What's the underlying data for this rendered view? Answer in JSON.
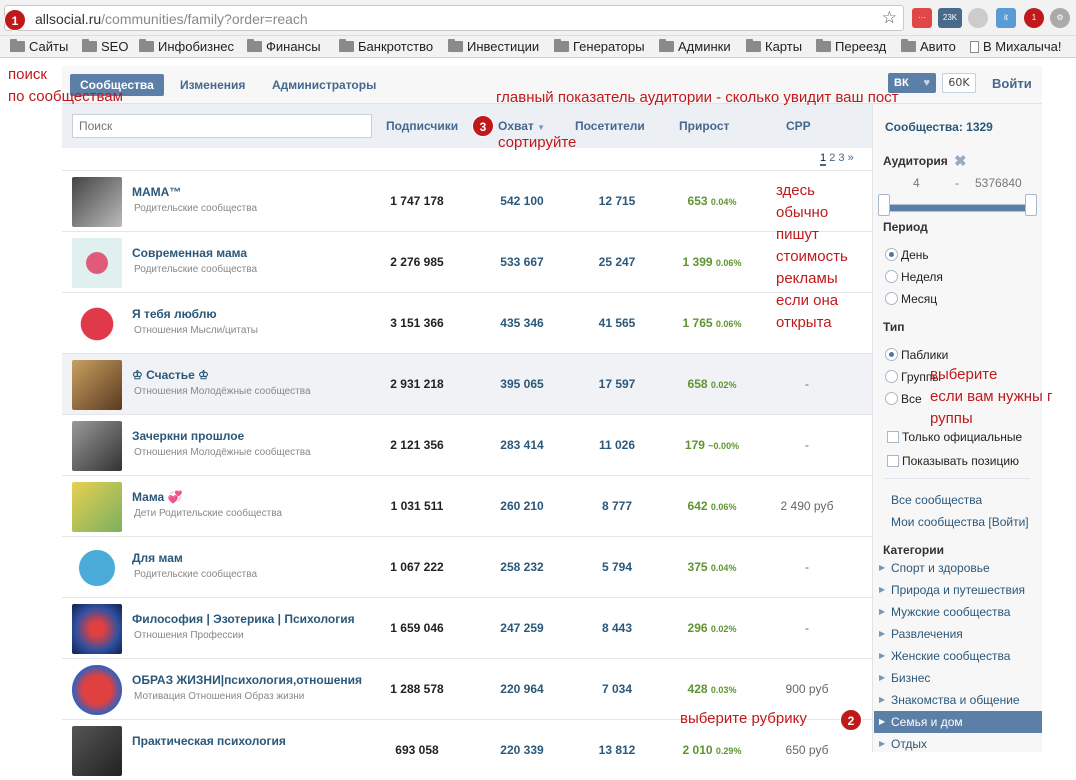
{
  "browser": {
    "url_domain": "allsocial.ru",
    "url_path": "/communities/family?order=reach",
    "ext_badge1": "23K",
    "ext_badge2": "1"
  },
  "bookmarks": [
    "Сайты",
    "SEO",
    "Инфобизнес",
    "Финансы",
    "Банкротство",
    "Инвестиции",
    "Генераторы",
    "Админки",
    "Карты",
    "Переезд",
    "Авито",
    "В Михалыча!"
  ],
  "annotations": {
    "badge1": "1",
    "badge2": "2",
    "badge3": "3",
    "search_note_1": "поиск",
    "search_note_2": "по сообществам",
    "audience_note": "главный показатель аудитории - сколько увидит ваш пост",
    "sort_note": "сортируйте",
    "price_note": [
      "здесь",
      "обычно",
      "пишут",
      "стоимость",
      "рекламы",
      "если она",
      "открыта"
    ],
    "type_note_1": "выберите",
    "type_note_2": "если вам нужны г",
    "type_note_3": "руппы",
    "rubric_note": "выберите рубрику"
  },
  "nav": {
    "tabs": [
      "Сообщества",
      "Изменения",
      "Администраторы"
    ],
    "vk_label": "ВК",
    "vk_count": "60K",
    "login": "Войти"
  },
  "table": {
    "search_placeholder": "Поиск",
    "headers": [
      "Подписчики",
      "Охват",
      "Посетители",
      "Прирост",
      "CPP"
    ],
    "pages": [
      "1",
      "2",
      "3",
      "»"
    ],
    "rows": [
      {
        "name": "МАМА™",
        "cats": "Родительские сообщества",
        "subs": "1 747 178",
        "reach": "542 100",
        "visitors": "12 715",
        "growth": "653",
        "growth_pct": "0.04%",
        "cpp": ""
      },
      {
        "name": "Современная мама",
        "cats": "Родительские сообщества",
        "subs": "2 276 985",
        "reach": "533 667",
        "visitors": "25 247",
        "growth": "1 399",
        "growth_pct": "0.06%",
        "cpp": ""
      },
      {
        "name": "Я тебя люблю",
        "cats": "Отношения Мысли/цитаты",
        "subs": "3 151 366",
        "reach": "435 346",
        "visitors": "41 565",
        "growth": "1 765",
        "growth_pct": "0.06%",
        "cpp": ""
      },
      {
        "name": "♔ Счастье ♔",
        "cats": "Отношения Молодёжные сообщества",
        "subs": "2 931 218",
        "reach": "395 065",
        "visitors": "17 597",
        "growth": "658",
        "growth_pct": "0.02%",
        "cpp": "-"
      },
      {
        "name": "Зачеркни прошлое",
        "cats": "Отношения Молодёжные сообщества",
        "subs": "2 121 356",
        "reach": "283 414",
        "visitors": "11 026",
        "growth": "179",
        "growth_pct": "~0.00%",
        "cpp": "-"
      },
      {
        "name": "Мама 💞",
        "cats": "Дети Родительские сообщества",
        "subs": "1 031 511",
        "reach": "260 210",
        "visitors": "8 777",
        "growth": "642",
        "growth_pct": "0.06%",
        "cpp": "2 490 руб"
      },
      {
        "name": "Для мам",
        "cats": "Родительские сообщества",
        "subs": "1 067 222",
        "reach": "258 232",
        "visitors": "5 794",
        "growth": "375",
        "growth_pct": "0.04%",
        "cpp": "-"
      },
      {
        "name": "Философия | Эзотерика | Психология",
        "cats": "Отношения Профессии",
        "subs": "1 659 046",
        "reach": "247 259",
        "visitors": "8 443",
        "growth": "296",
        "growth_pct": "0.02%",
        "cpp": "-"
      },
      {
        "name": "ОБРАЗ ЖИЗНИ|психология,отношения",
        "cats": "Мотивация Отношения Образ жизни",
        "subs": "1 288 578",
        "reach": "220 964",
        "visitors": "7 034",
        "growth": "428",
        "growth_pct": "0.03%",
        "cpp": "900 руб"
      },
      {
        "name": "Практическая психология",
        "cats": "",
        "subs": "693 058",
        "reach": "220 339",
        "visitors": "13 812",
        "growth": "2 010",
        "growth_pct": "0.29%",
        "cpp": "650 руб"
      }
    ]
  },
  "sidebar": {
    "count_label": "Сообщества: 1329",
    "audience_label": "Аудитория",
    "aud_min": "4",
    "aud_dash": "-",
    "aud_max": "5376840",
    "period_label": "Период",
    "period_options": [
      "День",
      "Неделя",
      "Месяц"
    ],
    "type_label": "Тип",
    "type_options": [
      "Паблики",
      "Группы",
      "Все"
    ],
    "only_official": "Только официальные",
    "show_position": "Показывать позицию",
    "all_communities": "Все сообщества",
    "my_communities": "Мои сообщества [Войти]",
    "categories_label": "Категории",
    "categories": [
      "Спорт и здоровье",
      "Природа и путешествия",
      "Мужские сообщества",
      "Развлечения",
      "Женские сообщества",
      "Бизнес",
      "Знакомства и общение",
      "Семья и дом",
      "Отдых"
    ],
    "selected_category": "Семья и дом"
  }
}
